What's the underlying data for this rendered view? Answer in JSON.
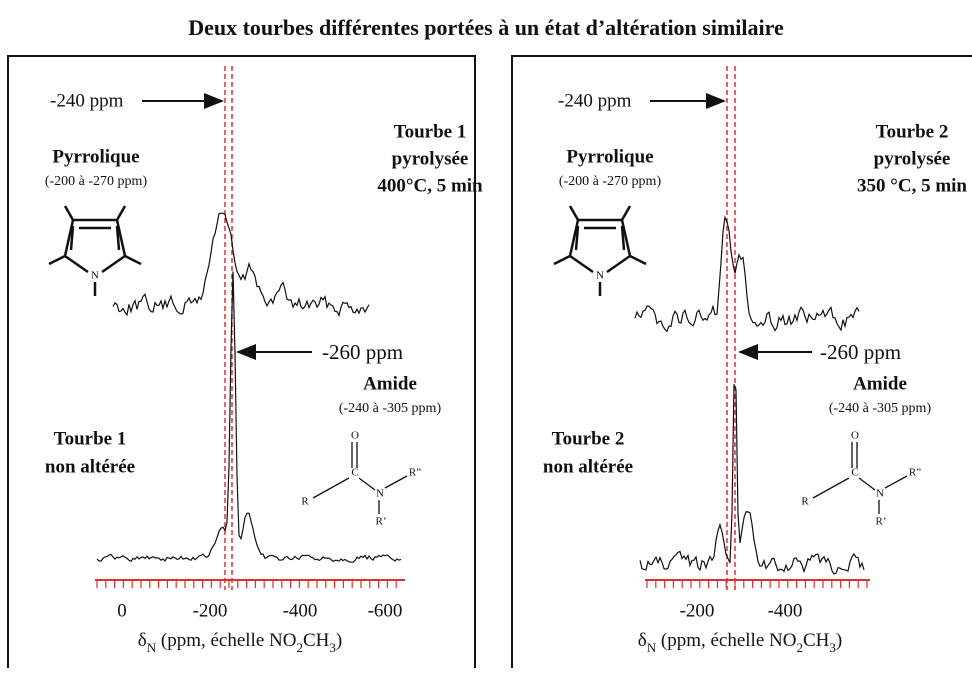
{
  "title": "Deux tourbes différentes portées à un état d’altération similaire",
  "axis_label": [
    "δ",
    "N",
    " (ppm, échelle NO",
    "2",
    "CH",
    "3",
    ")"
  ],
  "panels": [
    {
      "shift_top": "-240 ppm",
      "shift_bottom": "-260 ppm",
      "sample_pyro": [
        "Tourbe 1",
        "pyrolysée",
        "400°C, 5 min"
      ],
      "group_top": "Pyrrolique",
      "range_top": "(-200 à -270 ppm)",
      "group_bottom": "Amide",
      "range_bottom": "(-240 à -305 ppm)",
      "sample_raw": [
        "Tourbe 1",
        "non altérée"
      ],
      "pyrrole_atom": "N",
      "amide_atoms": [
        "O",
        "C",
        "N",
        "R",
        "R’",
        "R”"
      ],
      "ticks": [
        "0",
        "-200",
        "-400",
        "-600"
      ]
    },
    {
      "shift_top": "-240 ppm",
      "shift_bottom": "-260 ppm",
      "sample_pyro": [
        "Tourbe 2",
        "pyrolysée",
        "350 °C, 5 min"
      ],
      "group_top": "Pyrrolique",
      "range_top": "(-200 à -270 ppm)",
      "group_bottom": "Amide",
      "range_bottom": "(-240 à -305 ppm)",
      "sample_raw": [
        "Tourbe 2",
        "non altérée"
      ],
      "pyrrole_atom": "N",
      "amide_atoms": [
        "O",
        "C",
        "N",
        "R",
        "R’",
        "R”"
      ],
      "ticks": [
        "-200",
        "-400"
      ]
    }
  ]
}
